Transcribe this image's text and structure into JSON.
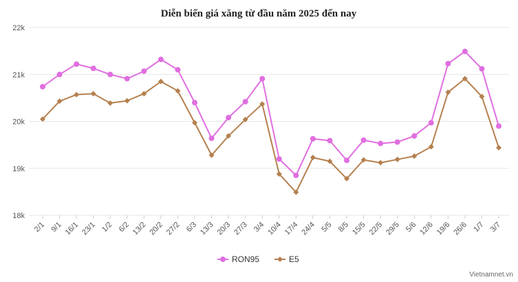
{
  "chart_data": {
    "type": "line",
    "title": "Diễn biến giá xăng từ đầu năm 2025 đến nay",
    "credit": "Vietnamnet.vn",
    "categories": [
      "2/1",
      "9/1",
      "16/1",
      "23/1",
      "1/2",
      "6/2",
      "13/2",
      "20/2",
      "27/2",
      "6/3",
      "13/3",
      "20/3",
      "27/3",
      "3/4",
      "10/4",
      "17/4",
      "24/4",
      "5/5",
      "8/5",
      "15/5",
      "22/5",
      "29/5",
      "5/6",
      "12/6",
      "19/6",
      "26/6",
      "1/7",
      "3/7"
    ],
    "ylim": [
      18000,
      22000
    ],
    "yticks": [
      18000,
      19000,
      20000,
      21000,
      22000
    ],
    "ytick_labels": [
      "18k",
      "19k",
      "20k",
      "21k",
      "22k"
    ],
    "grid": true,
    "legend_position": "bottom",
    "series": [
      {
        "name": "RON95",
        "color": "#e06ee0",
        "marker": "circle",
        "values": [
          20740,
          21000,
          21220,
          21130,
          21000,
          20910,
          21070,
          21320,
          21100,
          20400,
          19640,
          20080,
          20420,
          20910,
          19200,
          18850,
          19630,
          19590,
          19170,
          19600,
          19530,
          19560,
          19690,
          19970,
          21230,
          21490,
          21120,
          19900
        ]
      },
      {
        "name": "E5",
        "color": "#b5804f",
        "marker": "diamond",
        "values": [
          20050,
          20430,
          20570,
          20590,
          20390,
          20440,
          20590,
          20850,
          20650,
          19970,
          19280,
          19690,
          20040,
          20370,
          18880,
          18490,
          19230,
          19150,
          18780,
          19180,
          19120,
          19190,
          19260,
          19460,
          20620,
          20910,
          20530,
          19440
        ]
      }
    ]
  }
}
